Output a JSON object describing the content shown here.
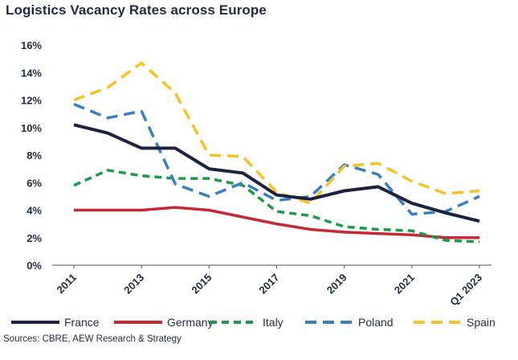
{
  "chart_data": {
    "type": "line",
    "title": "Logistics Vacancy Rates across Europe",
    "source": "Sources: CBRE, AEW Research & Strategy",
    "xlabel": "",
    "ylabel": "",
    "x": [
      2011,
      2012,
      2013,
      2014,
      2015,
      2016,
      2017,
      2018,
      2019,
      2020,
      2021,
      2022,
      2023
    ],
    "x_tick_labels": [
      "2011",
      "2013",
      "2015",
      "2017",
      "2019",
      "2021",
      "Q1 2023"
    ],
    "x_tick_positions": [
      2011,
      2013,
      2015,
      2017,
      2019,
      2021,
      2023
    ],
    "y_tick_labels": [
      "0%",
      "2%",
      "4%",
      "6%",
      "8%",
      "10%",
      "12%",
      "14%",
      "16%"
    ],
    "ylim": [
      0,
      16
    ],
    "grid": false,
    "legend_position": "bottom",
    "series": [
      {
        "name": "France",
        "color": "#1b2340",
        "dash": "solid",
        "values": [
          10.2,
          9.6,
          8.5,
          8.5,
          7.0,
          6.7,
          5.1,
          4.8,
          5.4,
          5.7,
          4.5,
          3.8,
          3.2
        ]
      },
      {
        "name": "Germany",
        "color": "#c42a33",
        "dash": "solid",
        "values": [
          4.0,
          4.0,
          4.0,
          4.2,
          4.0,
          3.5,
          3.0,
          2.6,
          2.4,
          2.3,
          2.2,
          2.0,
          2.0
        ]
      },
      {
        "name": "Italy",
        "color": "#1f9a4a",
        "dash": "dotted",
        "values": [
          5.8,
          6.9,
          6.5,
          6.3,
          6.3,
          5.8,
          3.9,
          3.6,
          2.8,
          2.6,
          2.5,
          1.8,
          1.7
        ]
      },
      {
        "name": "Poland",
        "color": "#3a7fc1",
        "dash": "dashed",
        "values": [
          11.7,
          10.7,
          11.2,
          5.9,
          5.0,
          6.0,
          4.7,
          5.0,
          7.3,
          6.6,
          3.7,
          3.9,
          5.0
        ]
      },
      {
        "name": "Spain",
        "color": "#f5c328",
        "dash": "dashed",
        "values": [
          12.0,
          12.9,
          14.7,
          12.5,
          8.0,
          7.9,
          5.3,
          4.5,
          7.2,
          7.4,
          6.1,
          5.2,
          5.4
        ]
      }
    ]
  }
}
